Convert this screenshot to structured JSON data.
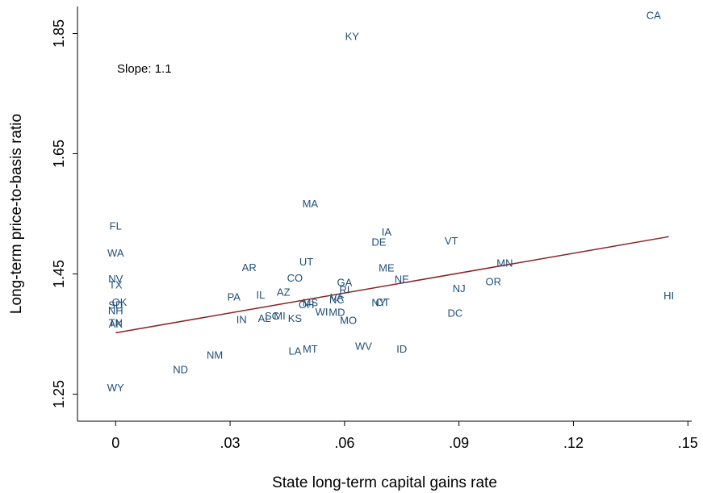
{
  "chart_data": {
    "type": "scatter",
    "title": "",
    "xlabel": "State long-term capital gains rate",
    "ylabel": "Long-term price-to-basis ratio",
    "xlim": [
      -0.01,
      0.151
    ],
    "ylim": [
      1.205,
      1.895
    ],
    "xticks": [
      0,
      0.03,
      0.06,
      0.09,
      0.12,
      0.15
    ],
    "xtick_labels": [
      "0",
      ".03",
      ".06",
      ".09",
      ".12",
      ".15"
    ],
    "yticks": [
      1.25,
      1.45,
      1.65,
      1.85
    ],
    "ytick_labels": [
      "1.25",
      "1.45",
      "1.65",
      "1.85"
    ],
    "grid": false,
    "annotation": "Slope: 1.1",
    "fit_line": {
      "x": [
        0,
        0.145
      ],
      "y": [
        1.352,
        1.512
      ],
      "color": "#8b2323"
    },
    "point_color": "#1f4e79",
    "points": [
      {
        "label": "CA",
        "x": 0.141,
        "y": 1.88
      },
      {
        "label": "KY",
        "x": 0.062,
        "y": 1.845
      },
      {
        "label": "MA",
        "x": 0.051,
        "y": 1.567
      },
      {
        "label": "FL",
        "x": 0.0,
        "y": 1.53
      },
      {
        "label": "IA",
        "x": 0.071,
        "y": 1.52
      },
      {
        "label": "DE",
        "x": 0.069,
        "y": 1.503
      },
      {
        "label": "VT",
        "x": 0.088,
        "y": 1.505
      },
      {
        "label": "WA",
        "x": 0.0,
        "y": 1.485
      },
      {
        "label": "UT",
        "x": 0.05,
        "y": 1.47
      },
      {
        "label": "MN",
        "x": 0.102,
        "y": 1.468
      },
      {
        "label": "AR",
        "x": 0.035,
        "y": 1.461
      },
      {
        "label": "ME",
        "x": 0.071,
        "y": 1.46
      },
      {
        "label": "NV",
        "x": 0.0,
        "y": 1.442
      },
      {
        "label": "CO",
        "x": 0.047,
        "y": 1.443
      },
      {
        "label": "NE",
        "x": 0.075,
        "y": 1.441
      },
      {
        "label": "OR",
        "x": 0.099,
        "y": 1.437
      },
      {
        "label": "GA",
        "x": 0.06,
        "y": 1.436
      },
      {
        "label": "TX",
        "x": 0.0,
        "y": 1.432
      },
      {
        "label": "NJ",
        "x": 0.09,
        "y": 1.426
      },
      {
        "label": "RI",
        "x": 0.06,
        "y": 1.424
      },
      {
        "label": "AZ",
        "x": 0.044,
        "y": 1.42
      },
      {
        "label": "HI",
        "x": 0.145,
        "y": 1.414
      },
      {
        "label": "IL",
        "x": 0.038,
        "y": 1.415
      },
      {
        "label": "PA",
        "x": 0.031,
        "y": 1.412
      },
      {
        "label": "VA",
        "x": 0.058,
        "y": 1.411
      },
      {
        "label": "NC",
        "x": 0.058,
        "y": 1.407
      },
      {
        "label": "OK",
        "x": 0.001,
        "y": 1.403
      },
      {
        "label": "MS",
        "x": 0.051,
        "y": 1.402
      },
      {
        "label": "OH",
        "x": 0.05,
        "y": 1.399
      },
      {
        "label": "NY",
        "x": 0.069,
        "y": 1.402
      },
      {
        "label": "CT",
        "x": 0.07,
        "y": 1.403
      },
      {
        "label": "SD",
        "x": 0.0,
        "y": 1.398
      },
      {
        "label": "NH",
        "x": 0.0,
        "y": 1.389
      },
      {
        "label": "DC",
        "x": 0.089,
        "y": 1.385
      },
      {
        "label": "WI",
        "x": 0.054,
        "y": 1.387
      },
      {
        "label": "MD",
        "x": 0.058,
        "y": 1.386
      },
      {
        "label": "SC",
        "x": 0.041,
        "y": 1.38
      },
      {
        "label": "MI",
        "x": 0.043,
        "y": 1.38
      },
      {
        "label": "AL",
        "x": 0.039,
        "y": 1.376
      },
      {
        "label": "IN",
        "x": 0.033,
        "y": 1.374
      },
      {
        "label": "KS",
        "x": 0.047,
        "y": 1.376
      },
      {
        "label": "MO",
        "x": 0.061,
        "y": 1.373
      },
      {
        "label": "TN",
        "x": 0.0,
        "y": 1.369
      },
      {
        "label": "AK",
        "x": 0.0,
        "y": 1.367
      },
      {
        "label": "WV",
        "x": 0.065,
        "y": 1.33
      },
      {
        "label": "ID",
        "x": 0.075,
        "y": 1.325
      },
      {
        "label": "MT",
        "x": 0.051,
        "y": 1.325
      },
      {
        "label": "LA",
        "x": 0.047,
        "y": 1.322
      },
      {
        "label": "NM",
        "x": 0.026,
        "y": 1.315
      },
      {
        "label": "ND",
        "x": 0.017,
        "y": 1.291
      },
      {
        "label": "WY",
        "x": 0.0,
        "y": 1.261
      }
    ]
  }
}
